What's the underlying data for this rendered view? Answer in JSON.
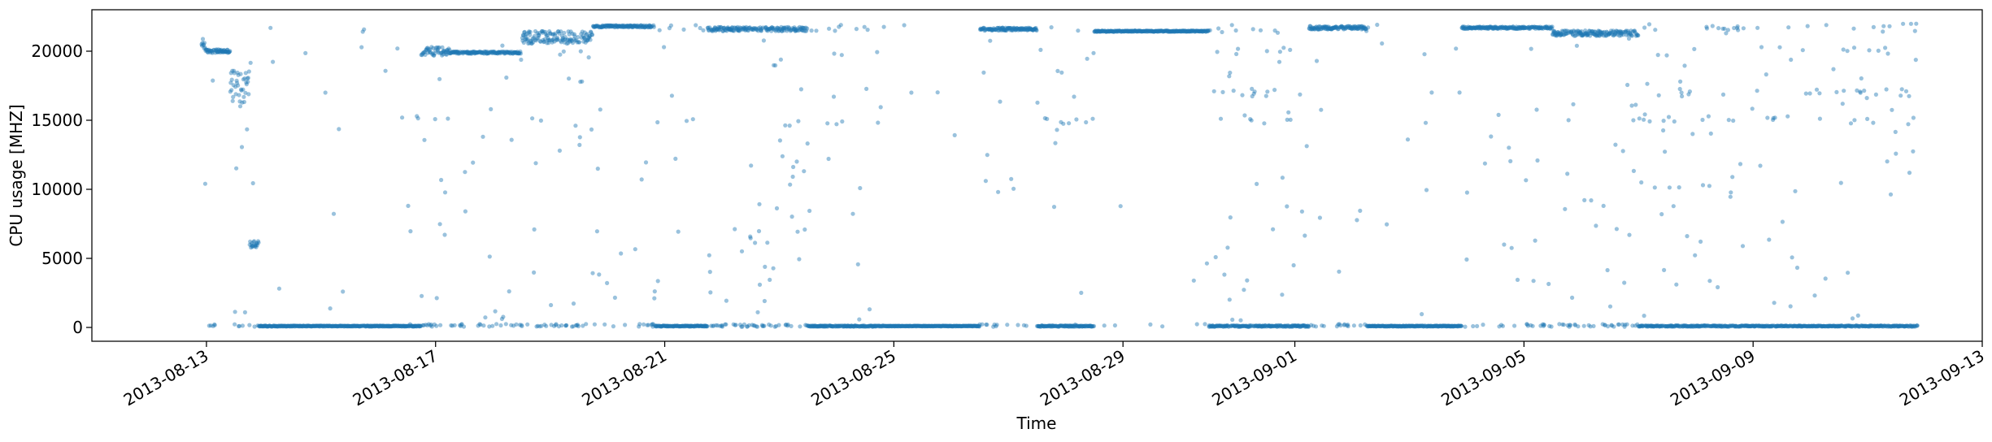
{
  "chart_data": {
    "type": "scatter",
    "title": "",
    "xlabel": "Time",
    "ylabel": "CPU usage [MHZ]",
    "xlim": [
      "2013-08-11T00:00",
      "2013-09-13T00:00"
    ],
    "ylim": [
      -1000,
      23000
    ],
    "xticks": [
      {
        "value": "2013-08-13",
        "label": "2013-08-13"
      },
      {
        "value": "2013-08-17",
        "label": "2013-08-17"
      },
      {
        "value": "2013-08-21",
        "label": "2013-08-21"
      },
      {
        "value": "2013-08-25",
        "label": "2013-08-25"
      },
      {
        "value": "2013-08-29",
        "label": "2013-08-29"
      },
      {
        "value": "2013-09-01",
        "label": "2013-09-01"
      },
      {
        "value": "2013-09-05",
        "label": "2013-09-05"
      },
      {
        "value": "2013-09-09",
        "label": "2013-09-09"
      },
      {
        "value": "2013-09-13",
        "label": "2013-09-13"
      }
    ],
    "yticks": [
      0,
      5000,
      10000,
      15000,
      20000
    ],
    "grid": false,
    "legend": "none",
    "marker_color": "#1f77b4",
    "marker_alpha": 0.45,
    "data_range": [
      "2013-08-12T22:00",
      "2013-09-11T21:00"
    ],
    "segments": [
      {
        "start": "2013-08-12T22:00",
        "end": "2013-08-12T23:30",
        "level": 20500,
        "spread": 800,
        "noise": 0.55
      },
      {
        "start": "2013-08-12T23:30",
        "end": "2013-08-13T10:00",
        "level": 20000,
        "spread": 250,
        "noise": 0.35
      },
      {
        "start": "2013-08-13T10:00",
        "end": "2013-08-13T18:00",
        "level": 17500,
        "spread": 2500,
        "noise": 0.6
      },
      {
        "start": "2013-08-13T18:00",
        "end": "2013-08-13T22:00",
        "level": 6000,
        "spread": 500,
        "noise": 0.5
      },
      {
        "start": "2013-08-13T22:00",
        "end": "2013-08-16T18:00",
        "level": 100,
        "spread": 60,
        "noise": 0.15
      },
      {
        "start": "2013-08-16T18:00",
        "end": "2013-08-17T06:00",
        "level": 20000,
        "spread": 600,
        "noise": 0.8
      },
      {
        "start": "2013-08-17T06:00",
        "end": "2013-08-18T12:00",
        "level": 19900,
        "spread": 150,
        "noise": 0.55
      },
      {
        "start": "2013-08-18T12:00",
        "end": "2013-08-19T18:00",
        "level": 21000,
        "spread": 900,
        "noise": 0.65
      },
      {
        "start": "2013-08-19T18:00",
        "end": "2013-08-20T20:00",
        "level": 21800,
        "spread": 150,
        "noise": 0.55
      },
      {
        "start": "2013-08-20T20:00",
        "end": "2013-08-21T18:00",
        "level": 100,
        "spread": 60,
        "noise": 0.25
      },
      {
        "start": "2013-08-21T18:00",
        "end": "2013-08-23T12:00",
        "level": 21600,
        "spread": 300,
        "noise": 0.75
      },
      {
        "start": "2013-08-23T12:00",
        "end": "2013-08-24T20:00",
        "level": 100,
        "spread": 80,
        "noise": 0.55
      },
      {
        "start": "2013-08-24T20:00",
        "end": "2013-08-26T12:00",
        "level": 100,
        "spread": 40,
        "noise": 0.05
      },
      {
        "start": "2013-08-26T12:00",
        "end": "2013-08-27T12:00",
        "level": 21600,
        "spread": 200,
        "noise": 0.3
      },
      {
        "start": "2013-08-27T12:00",
        "end": "2013-08-28T12:00",
        "level": 100,
        "spread": 80,
        "noise": 0.45
      },
      {
        "start": "2013-08-28T12:00",
        "end": "2013-08-30T12:00",
        "level": 21450,
        "spread": 80,
        "noise": 0.05
      },
      {
        "start": "2013-08-30T12:00",
        "end": "2013-09-01T06:00",
        "level": 100,
        "spread": 100,
        "noise": 0.6
      },
      {
        "start": "2013-09-01T06:00",
        "end": "2013-09-02T06:00",
        "level": 21700,
        "spread": 250,
        "noise": 0.55
      },
      {
        "start": "2013-09-02T06:00",
        "end": "2013-09-03T22:00",
        "level": 100,
        "spread": 60,
        "noise": 0.2
      },
      {
        "start": "2013-09-03T22:00",
        "end": "2013-09-05T12:00",
        "level": 21700,
        "spread": 150,
        "noise": 0.45
      },
      {
        "start": "2013-09-05T12:00",
        "end": "2013-09-07T00:00",
        "level": 21300,
        "spread": 400,
        "noise": 0.6
      },
      {
        "start": "2013-09-07T00:00",
        "end": "2013-09-09T00:00",
        "level": 100,
        "spread": 80,
        "noise": 0.75
      },
      {
        "start": "2013-09-09T00:00",
        "end": "2013-09-10T12:00",
        "level": 100,
        "spread": 60,
        "noise": 0.35
      },
      {
        "start": "2013-09-10T12:00",
        "end": "2013-09-11T21:00",
        "level": 100,
        "spread": 80,
        "noise": 0.7
      }
    ]
  }
}
